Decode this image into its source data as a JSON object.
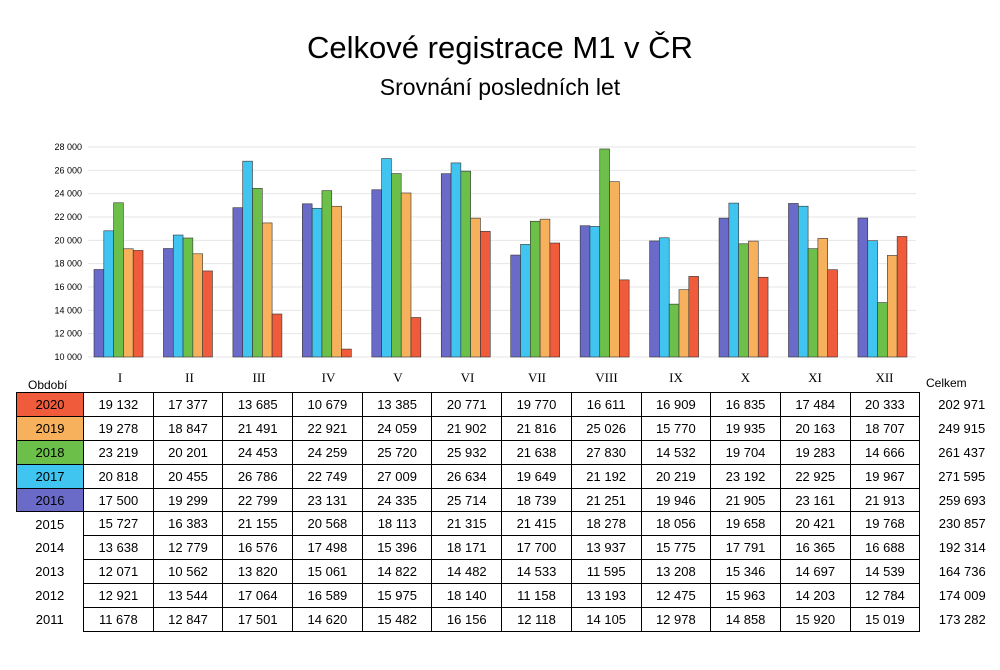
{
  "chart_data": {
    "type": "bar",
    "title": "Celkové registrace M1 v ČR",
    "subtitle": "Srovnání posledních let",
    "categories": [
      "I",
      "II",
      "III",
      "IV",
      "V",
      "VI",
      "VII",
      "VIII",
      "IX",
      "X",
      "XI",
      "XII"
    ],
    "y_ticks": [
      "10 000",
      "12 000",
      "14 000",
      "16 000",
      "18 000",
      "20 000",
      "22 000",
      "24 000",
      "26 000",
      "28 000"
    ],
    "ylim": [
      10000,
      28000
    ],
    "grid": true,
    "period_header": "Období",
    "total_header": "Celkem",
    "series": [
      {
        "name": "2016",
        "color": "#6a6ac9",
        "values": [
          17500,
          19299,
          22799,
          23131,
          24335,
          25714,
          18739,
          21251,
          19946,
          21905,
          23161,
          21913
        ],
        "display": [
          "17 500",
          "19 299",
          "22 799",
          "23 131",
          "24 335",
          "25 714",
          "18 739",
          "21 251",
          "19 946",
          "21 905",
          "23 161",
          "21 913"
        ],
        "total": "259 693",
        "charted": true
      },
      {
        "name": "2017",
        "color": "#3fc5f0",
        "values": [
          20818,
          20455,
          26786,
          22749,
          27009,
          26634,
          19649,
          21192,
          20219,
          23192,
          22925,
          19967
        ],
        "display": [
          "20 818",
          "20 455",
          "26 786",
          "22 749",
          "27 009",
          "26 634",
          "19 649",
          "21 192",
          "20 219",
          "23 192",
          "22 925",
          "19 967"
        ],
        "total": "271 595",
        "charted": true
      },
      {
        "name": "2018",
        "color": "#6cc04a",
        "values": [
          23219,
          20201,
          24453,
          24259,
          25720,
          25932,
          21638,
          27830,
          14532,
          19704,
          19283,
          14666
        ],
        "display": [
          "23 219",
          "20 201",
          "24 453",
          "24 259",
          "25 720",
          "25 932",
          "21 638",
          "27 830",
          "14 532",
          "19 704",
          "19 283",
          "14 666"
        ],
        "total": "261 437",
        "charted": true
      },
      {
        "name": "2019",
        "color": "#f7b05b",
        "values": [
          19278,
          18847,
          21491,
          22921,
          24059,
          21902,
          21816,
          25026,
          15770,
          19935,
          20163,
          18707
        ],
        "display": [
          "19 278",
          "18 847",
          "21 491",
          "22 921",
          "24 059",
          "21 902",
          "21 816",
          "25 026",
          "15 770",
          "19 935",
          "20 163",
          "18 707"
        ],
        "total": "249 915",
        "charted": true
      },
      {
        "name": "2020",
        "color": "#ef5b3b",
        "values": [
          19132,
          17377,
          13685,
          10679,
          13385,
          20771,
          19770,
          16611,
          16909,
          16835,
          17484,
          20333
        ],
        "display": [
          "19 132",
          "17 377",
          "13 685",
          "10 679",
          "13 385",
          "20 771",
          "19 770",
          "16 611",
          "16 909",
          "16 835",
          "17 484",
          "20 333"
        ],
        "total": "202 971",
        "charted": true
      },
      {
        "name": "2015",
        "color": "",
        "values": [
          15727,
          16383,
          21155,
          20568,
          18113,
          21315,
          21415,
          18278,
          18056,
          19658,
          20421,
          19768
        ],
        "display": [
          "15 727",
          "16 383",
          "21 155",
          "20 568",
          "18 113",
          "21 315",
          "21 415",
          "18 278",
          "18 056",
          "19 658",
          "20 421",
          "19 768"
        ],
        "total": "230 857",
        "charted": false
      },
      {
        "name": "2014",
        "color": "",
        "values": [
          13638,
          12779,
          16576,
          17498,
          15396,
          18171,
          17700,
          13937,
          15775,
          17791,
          16365,
          16688
        ],
        "display": [
          "13 638",
          "12 779",
          "16 576",
          "17 498",
          "15 396",
          "18 171",
          "17 700",
          "13 937",
          "15 775",
          "17 791",
          "16 365",
          "16 688"
        ],
        "total": "192 314",
        "charted": false
      },
      {
        "name": "2013",
        "color": "",
        "values": [
          12071,
          10562,
          13820,
          15061,
          14822,
          14482,
          14533,
          11595,
          13208,
          15346,
          14697,
          14539
        ],
        "display": [
          "12 071",
          "10 562",
          "13 820",
          "15 061",
          "14 822",
          "14 482",
          "14 533",
          "11 595",
          "13 208",
          "15 346",
          "14 697",
          "14 539"
        ],
        "total": "164 736",
        "charted": false
      },
      {
        "name": "2012",
        "color": "",
        "values": [
          12921,
          13544,
          17064,
          16589,
          15975,
          18140,
          11158,
          13193,
          12475,
          15963,
          14203,
          12784
        ],
        "display": [
          "12 921",
          "13 544",
          "17 064",
          "16 589",
          "15 975",
          "18 140",
          "11 158",
          "13 193",
          "12 475",
          "15 963",
          "14 203",
          "12 784"
        ],
        "total": "174 009",
        "charted": false
      },
      {
        "name": "2011",
        "color": "",
        "values": [
          11678,
          12847,
          17501,
          14620,
          15482,
          16156,
          12118,
          14105,
          12978,
          14858,
          15920,
          15019
        ],
        "display": [
          "11 678",
          "12 847",
          "17 501",
          "14 620",
          "15 482",
          "16 156",
          "12 118",
          "14 105",
          "12 978",
          "14 858",
          "15 920",
          "15 019"
        ],
        "total": "173 282",
        "charted": false
      }
    ],
    "table_row_order": [
      "2020",
      "2019",
      "2018",
      "2017",
      "2016",
      "2015",
      "2014",
      "2013",
      "2012",
      "2011"
    ]
  }
}
